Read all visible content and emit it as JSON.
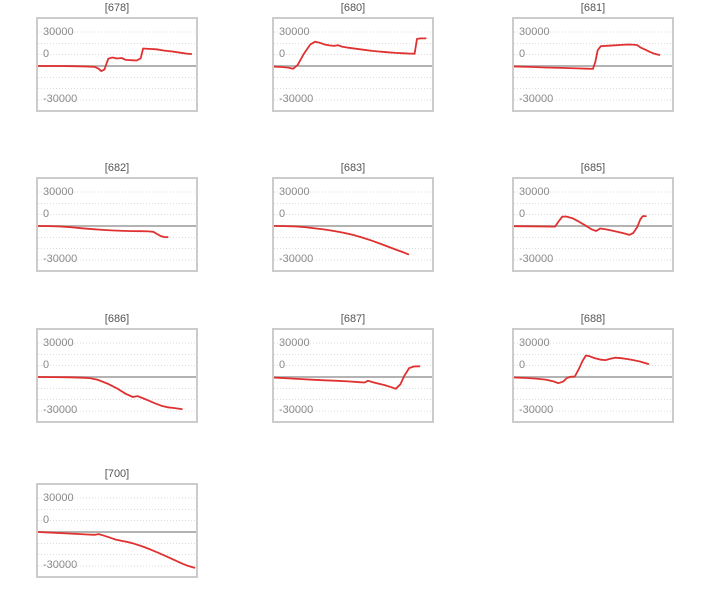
{
  "page": {
    "background": "#ffffff"
  },
  "axis": {
    "tick_labels": [
      "30000",
      "0",
      "-30000"
    ],
    "tick_values": [
      30000,
      0,
      -30000
    ],
    "gridline_step": 10000,
    "y_range_approx": [
      -39000,
      41500
    ],
    "grid": "dotted horizontal lines every 10000, solid gray line at 0"
  },
  "colors": {
    "series": "#e03131",
    "zero_line": "#b3b3b3",
    "gridline": "#dddddd",
    "plot_border": "#cccccc",
    "tick_label": "#8a8a8a",
    "title": "#555555"
  },
  "chart_data": [
    {
      "type": "line",
      "title": "[678]",
      "ylim": [
        -39000,
        41500
      ],
      "points": [
        [
          0,
          0
        ],
        [
          0.12,
          0
        ],
        [
          0.22,
          -200
        ],
        [
          0.3,
          -400
        ],
        [
          0.36,
          -800
        ],
        [
          0.385,
          -2500
        ],
        [
          0.4,
          -4500
        ],
        [
          0.42,
          -3200
        ],
        [
          0.445,
          6500
        ],
        [
          0.47,
          7500
        ],
        [
          0.5,
          6600
        ],
        [
          0.53,
          7100
        ],
        [
          0.555,
          5400
        ],
        [
          0.59,
          5100
        ],
        [
          0.625,
          4900
        ],
        [
          0.65,
          6800
        ],
        [
          0.665,
          15500
        ],
        [
          0.7,
          15100
        ],
        [
          0.75,
          14800
        ],
        [
          0.8,
          13600
        ],
        [
          0.85,
          12800
        ],
        [
          0.9,
          11800
        ],
        [
          0.94,
          11000
        ],
        [
          0.97,
          10600
        ]
      ]
    },
    {
      "type": "line",
      "title": "[680]",
      "ylim": [
        -39000,
        41500
      ],
      "points": [
        [
          0,
          -500
        ],
        [
          0.05,
          -900
        ],
        [
          0.09,
          -1400
        ],
        [
          0.12,
          -2500
        ],
        [
          0.15,
          1000
        ],
        [
          0.19,
          11000
        ],
        [
          0.23,
          19000
        ],
        [
          0.26,
          21500
        ],
        [
          0.29,
          20500
        ],
        [
          0.32,
          19000
        ],
        [
          0.35,
          18200
        ],
        [
          0.38,
          17800
        ],
        [
          0.405,
          18400
        ],
        [
          0.43,
          17200
        ],
        [
          0.47,
          16200
        ],
        [
          0.52,
          15200
        ],
        [
          0.57,
          14300
        ],
        [
          0.62,
          13400
        ],
        [
          0.67,
          12700
        ],
        [
          0.72,
          12100
        ],
        [
          0.77,
          11600
        ],
        [
          0.82,
          11200
        ],
        [
          0.86,
          11000
        ],
        [
          0.89,
          10900
        ],
        [
          0.905,
          24000
        ],
        [
          0.93,
          24400
        ],
        [
          0.96,
          24400
        ]
      ]
    },
    {
      "type": "line",
      "title": "[681]",
      "ylim": [
        -39000,
        41500
      ],
      "points": [
        [
          0,
          -400
        ],
        [
          0.1,
          -800
        ],
        [
          0.2,
          -1300
        ],
        [
          0.3,
          -1700
        ],
        [
          0.4,
          -2100
        ],
        [
          0.46,
          -2400
        ],
        [
          0.5,
          -2600
        ],
        [
          0.515,
          4000
        ],
        [
          0.53,
          14000
        ],
        [
          0.55,
          17600
        ],
        [
          0.6,
          18000
        ],
        [
          0.64,
          18300
        ],
        [
          0.68,
          18700
        ],
        [
          0.72,
          19000
        ],
        [
          0.75,
          18900
        ],
        [
          0.78,
          18500
        ],
        [
          0.8,
          16500
        ],
        [
          0.83,
          14500
        ],
        [
          0.86,
          12500
        ],
        [
          0.89,
          10800
        ],
        [
          0.92,
          9700
        ]
      ]
    },
    {
      "type": "line",
      "title": "[682]",
      "ylim": [
        -39000,
        41500
      ],
      "points": [
        [
          0,
          0
        ],
        [
          0.07,
          -100
        ],
        [
          0.14,
          -400
        ],
        [
          0.21,
          -1100
        ],
        [
          0.28,
          -2000
        ],
        [
          0.35,
          -2800
        ],
        [
          0.42,
          -3500
        ],
        [
          0.48,
          -4000
        ],
        [
          0.54,
          -4300
        ],
        [
          0.6,
          -4500
        ],
        [
          0.65,
          -4600
        ],
        [
          0.7,
          -4800
        ],
        [
          0.73,
          -5100
        ],
        [
          0.755,
          -7200
        ],
        [
          0.78,
          -9100
        ],
        [
          0.8,
          -9700
        ],
        [
          0.82,
          -9900
        ]
      ]
    },
    {
      "type": "line",
      "title": "[683]",
      "ylim": [
        -39000,
        41500
      ],
      "points": [
        [
          0,
          0
        ],
        [
          0.07,
          -100
        ],
        [
          0.14,
          -400
        ],
        [
          0.2,
          -1100
        ],
        [
          0.26,
          -2100
        ],
        [
          0.32,
          -3100
        ],
        [
          0.38,
          -4400
        ],
        [
          0.44,
          -6000
        ],
        [
          0.5,
          -7900
        ],
        [
          0.56,
          -10300
        ],
        [
          0.62,
          -13000
        ],
        [
          0.68,
          -16000
        ],
        [
          0.73,
          -18700
        ],
        [
          0.78,
          -21300
        ],
        [
          0.82,
          -23400
        ],
        [
          0.85,
          -25000
        ]
      ]
    },
    {
      "type": "line",
      "title": "[685]",
      "ylim": [
        -39000,
        41500
      ],
      "points": [
        [
          0,
          -200
        ],
        [
          0.1,
          -300
        ],
        [
          0.2,
          -400
        ],
        [
          0.26,
          -500
        ],
        [
          0.28,
          3500
        ],
        [
          0.305,
          8200
        ],
        [
          0.33,
          8400
        ],
        [
          0.37,
          6900
        ],
        [
          0.41,
          3900
        ],
        [
          0.45,
          600
        ],
        [
          0.49,
          -2900
        ],
        [
          0.52,
          -4400
        ],
        [
          0.545,
          -2200
        ],
        [
          0.575,
          -2700
        ],
        [
          0.61,
          -3800
        ],
        [
          0.66,
          -5300
        ],
        [
          0.7,
          -6600
        ],
        [
          0.73,
          -7900
        ],
        [
          0.755,
          -6200
        ],
        [
          0.78,
          -1000
        ],
        [
          0.8,
          6000
        ],
        [
          0.815,
          8800
        ],
        [
          0.835,
          8800
        ]
      ]
    },
    {
      "type": "line",
      "title": "[686]",
      "ylim": [
        -39000,
        41500
      ],
      "points": [
        [
          0,
          0
        ],
        [
          0.1,
          -100
        ],
        [
          0.2,
          -300
        ],
        [
          0.28,
          -600
        ],
        [
          0.33,
          -1000
        ],
        [
          0.38,
          -2600
        ],
        [
          0.44,
          -5800
        ],
        [
          0.5,
          -10100
        ],
        [
          0.555,
          -14900
        ],
        [
          0.6,
          -17700
        ],
        [
          0.63,
          -16900
        ],
        [
          0.66,
          -18600
        ],
        [
          0.7,
          -20900
        ],
        [
          0.74,
          -23300
        ],
        [
          0.78,
          -25400
        ],
        [
          0.82,
          -26800
        ],
        [
          0.86,
          -27400
        ],
        [
          0.91,
          -28400
        ]
      ]
    },
    {
      "type": "line",
      "title": "[687]",
      "ylim": [
        -39000,
        41500
      ],
      "points": [
        [
          0,
          -500
        ],
        [
          0.08,
          -1100
        ],
        [
          0.16,
          -1800
        ],
        [
          0.24,
          -2400
        ],
        [
          0.32,
          -2900
        ],
        [
          0.4,
          -3400
        ],
        [
          0.47,
          -3900
        ],
        [
          0.54,
          -4600
        ],
        [
          0.575,
          -4900
        ],
        [
          0.595,
          -3300
        ],
        [
          0.62,
          -4400
        ],
        [
          0.66,
          -5800
        ],
        [
          0.7,
          -7200
        ],
        [
          0.745,
          -9100
        ],
        [
          0.77,
          -10400
        ],
        [
          0.8,
          -6500
        ],
        [
          0.825,
          1000
        ],
        [
          0.855,
          7900
        ],
        [
          0.885,
          9300
        ],
        [
          0.92,
          9500
        ]
      ]
    },
    {
      "type": "line",
      "title": "[688]",
      "ylim": [
        -39000,
        41500
      ],
      "points": [
        [
          0,
          -400
        ],
        [
          0.08,
          -900
        ],
        [
          0.14,
          -1400
        ],
        [
          0.2,
          -2300
        ],
        [
          0.25,
          -3900
        ],
        [
          0.28,
          -5500
        ],
        [
          0.31,
          -4200
        ],
        [
          0.335,
          -900
        ],
        [
          0.36,
          300
        ],
        [
          0.385,
          400
        ],
        [
          0.41,
          7000
        ],
        [
          0.435,
          14500
        ],
        [
          0.455,
          19000
        ],
        [
          0.48,
          18300
        ],
        [
          0.51,
          16700
        ],
        [
          0.55,
          15300
        ],
        [
          0.58,
          15000
        ],
        [
          0.61,
          16100
        ],
        [
          0.64,
          17100
        ],
        [
          0.68,
          16600
        ],
        [
          0.72,
          15800
        ],
        [
          0.76,
          14800
        ],
        [
          0.8,
          13600
        ],
        [
          0.85,
          11500
        ]
      ]
    },
    {
      "type": "line",
      "title": "[700]",
      "ylim": [
        -39000,
        41500
      ],
      "points": [
        [
          0,
          0
        ],
        [
          0.08,
          -500
        ],
        [
          0.16,
          -1100
        ],
        [
          0.24,
          -1700
        ],
        [
          0.31,
          -2200
        ],
        [
          0.36,
          -2500
        ],
        [
          0.385,
          -1900
        ],
        [
          0.41,
          -2900
        ],
        [
          0.45,
          -4700
        ],
        [
          0.49,
          -6600
        ],
        [
          0.53,
          -7900
        ],
        [
          0.57,
          -8900
        ],
        [
          0.61,
          -10400
        ],
        [
          0.66,
          -12700
        ],
        [
          0.71,
          -15400
        ],
        [
          0.76,
          -18300
        ],
        [
          0.81,
          -21400
        ],
        [
          0.86,
          -24600
        ],
        [
          0.91,
          -27800
        ],
        [
          0.95,
          -30000
        ],
        [
          0.99,
          -31600
        ]
      ]
    }
  ]
}
